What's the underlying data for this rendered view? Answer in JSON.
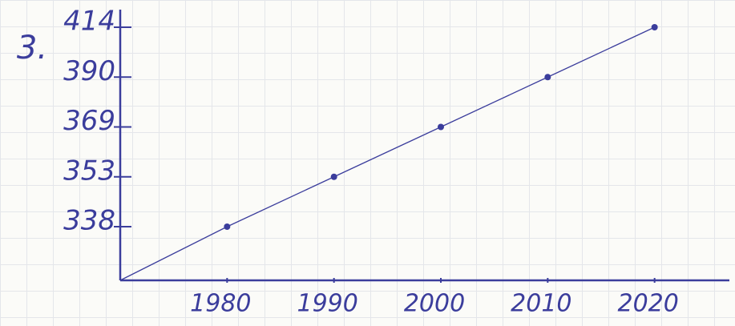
{
  "chart_data": {
    "type": "line",
    "title": "3.",
    "x": [
      1980,
      1990,
      2000,
      2010,
      2020
    ],
    "values": [
      338,
      353,
      369,
      390,
      414
    ],
    "color": "#3b3d9c",
    "xlim": [
      1970,
      2027
    ],
    "xticks": [
      1980,
      1990,
      2000,
      2010,
      2020
    ],
    "yticks": [
      338,
      353,
      369,
      390,
      414
    ]
  }
}
